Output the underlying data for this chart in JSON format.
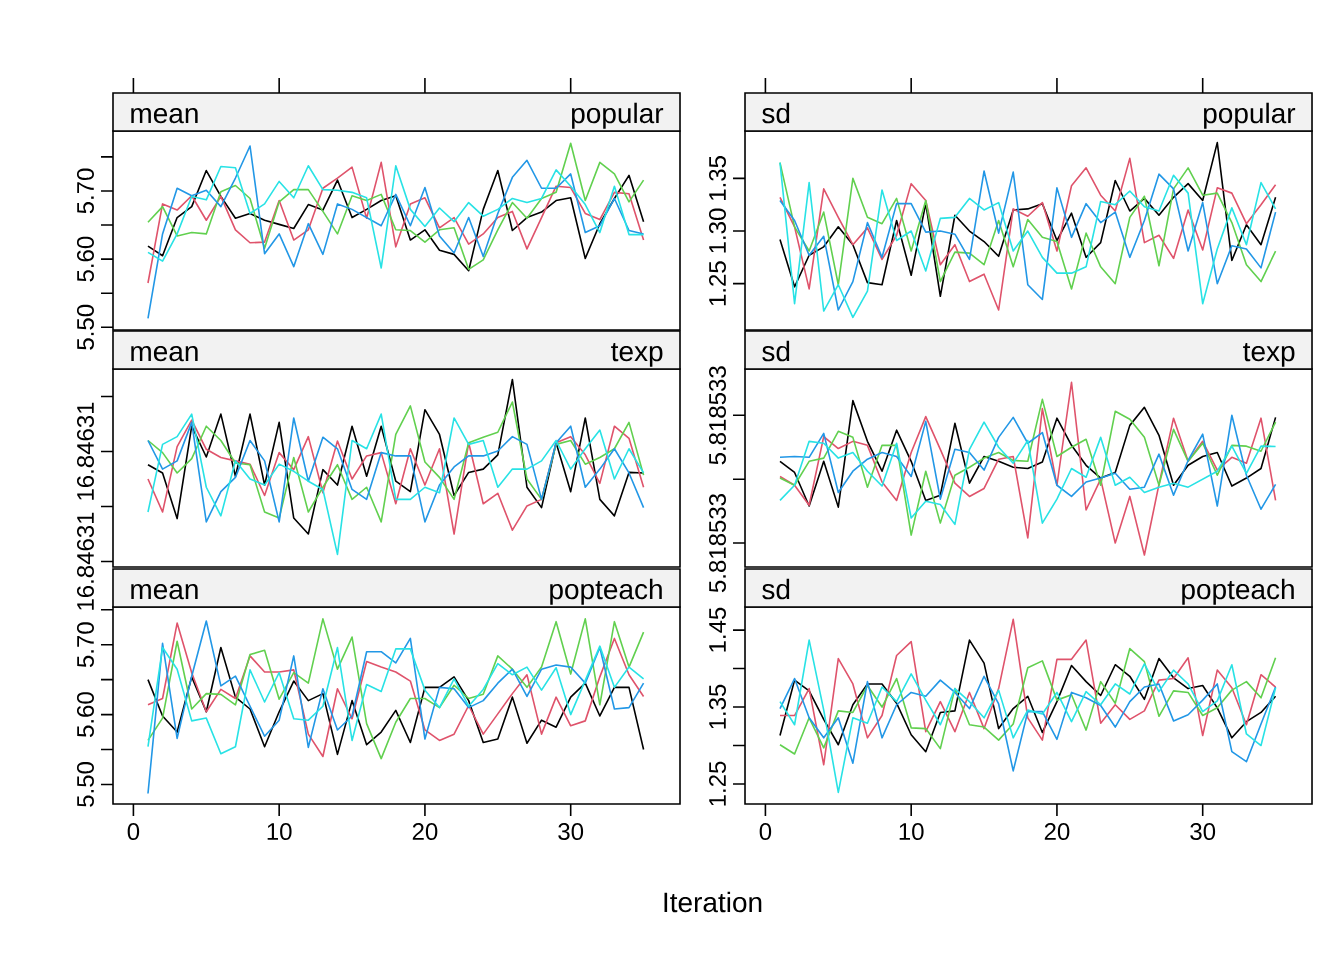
{
  "chart_data": [
    {
      "type": "line",
      "title": "mean",
      "subtitle": "popular",
      "x": [
        1,
        2,
        3,
        4,
        5,
        6,
        7,
        8,
        9,
        10,
        11,
        12,
        13,
        14,
        15,
        16,
        17,
        18,
        19,
        20,
        21,
        22,
        23,
        24,
        25,
        26,
        27,
        28,
        29,
        30,
        31,
        32,
        33,
        34,
        35
      ],
      "xlim": [
        -1.4,
        37.5
      ],
      "xticks": [
        0,
        10,
        20,
        30
      ],
      "ylim": [
        5.496,
        5.788
      ],
      "yticks": [
        {
          "value": 5.5,
          "label": "5.50"
        },
        {
          "value": 5.55,
          "label": null
        },
        {
          "value": 5.6,
          "label": "5.60"
        },
        {
          "value": 5.65,
          "label": null
        },
        {
          "value": 5.7,
          "label": "5.70"
        },
        {
          "value": 5.75,
          "label": null
        }
      ],
      "tick_labels": "y",
      "series": [
        {
          "color": "#000000",
          "values": [
            5.619,
            5.605,
            5.661,
            5.677,
            5.73,
            5.692,
            5.66,
            5.667,
            5.657,
            5.651,
            5.645,
            5.68,
            5.672,
            5.716,
            5.661,
            5.673,
            5.686,
            5.693,
            5.628,
            5.643,
            5.613,
            5.607,
            5.583,
            5.673,
            5.73,
            5.642,
            5.661,
            5.669,
            5.686,
            5.69,
            5.601,
            5.652,
            5.689,
            5.723,
            5.655
          ]
        },
        {
          "color": "#DF536B",
          "values": [
            5.565,
            5.681,
            5.672,
            5.693,
            5.657,
            5.692,
            5.643,
            5.624,
            5.625,
            5.686,
            5.628,
            5.643,
            5.704,
            5.719,
            5.735,
            5.66,
            5.742,
            5.618,
            5.681,
            5.69,
            5.646,
            5.661,
            5.622,
            5.637,
            5.661,
            5.67,
            5.615,
            5.661,
            5.707,
            5.705,
            5.667,
            5.658,
            5.698,
            5.696,
            5.628
          ]
        },
        {
          "color": "#61D04F",
          "values": [
            5.654,
            5.677,
            5.634,
            5.639,
            5.637,
            5.699,
            5.708,
            5.689,
            5.616,
            5.684,
            5.702,
            5.702,
            5.67,
            5.637,
            5.693,
            5.686,
            5.695,
            5.643,
            5.642,
            5.625,
            5.643,
            5.646,
            5.585,
            5.599,
            5.643,
            5.683,
            5.66,
            5.689,
            5.698,
            5.77,
            5.686,
            5.742,
            5.725,
            5.684,
            5.716
          ]
        },
        {
          "color": "#2297E6",
          "values": [
            5.513,
            5.637,
            5.704,
            5.693,
            5.701,
            5.677,
            5.719,
            5.766,
            5.608,
            5.637,
            5.589,
            5.652,
            5.607,
            5.681,
            5.673,
            5.661,
            5.649,
            5.695,
            5.649,
            5.705,
            5.634,
            5.609,
            5.661,
            5.604,
            5.667,
            5.72,
            5.745,
            5.704,
            5.704,
            5.725,
            5.639,
            5.649,
            5.689,
            5.642,
            5.637
          ]
        },
        {
          "color": "#28E2E5",
          "values": [
            5.61,
            5.597,
            5.637,
            5.692,
            5.687,
            5.736,
            5.734,
            5.667,
            5.681,
            5.714,
            5.69,
            5.737,
            5.702,
            5.701,
            5.698,
            5.69,
            5.587,
            5.737,
            5.673,
            5.648,
            5.675,
            5.655,
            5.683,
            5.663,
            5.673,
            5.689,
            5.683,
            5.689,
            5.731,
            5.707,
            5.68,
            5.639,
            5.707,
            5.636,
            5.636
          ]
        }
      ]
    },
    {
      "type": "line",
      "title": "sd",
      "subtitle": "popular",
      "x": [
        1,
        2,
        3,
        4,
        5,
        6,
        7,
        8,
        9,
        10,
        11,
        12,
        13,
        14,
        15,
        16,
        17,
        18,
        19,
        20,
        21,
        22,
        23,
        24,
        25,
        26,
        27,
        28,
        29,
        30,
        31,
        32,
        33,
        34,
        35
      ],
      "xlim": [
        -1.4,
        37.5
      ],
      "xticks": [
        0,
        10,
        20,
        30
      ],
      "ylim": [
        1.206,
        1.395
      ],
      "yticks": [
        {
          "value": 1.25,
          "label": "1.25"
        },
        {
          "value": 1.3,
          "label": "1.30"
        },
        {
          "value": 1.35,
          "label": "1.35"
        }
      ],
      "tick_labels": "y",
      "series": [
        {
          "color": "#000000",
          "values": [
            1.292,
            1.247,
            1.277,
            1.285,
            1.304,
            1.287,
            1.251,
            1.249,
            1.31,
            1.258,
            1.326,
            1.238,
            1.315,
            1.3,
            1.29,
            1.276,
            1.32,
            1.321,
            1.326,
            1.291,
            1.317,
            1.275,
            1.289,
            1.348,
            1.319,
            1.331,
            1.315,
            1.332,
            1.345,
            1.329,
            1.384,
            1.272,
            1.306,
            1.287,
            1.332
          ]
        },
        {
          "color": "#DF536B",
          "values": [
            1.332,
            1.304,
            1.245,
            1.34,
            1.313,
            1.287,
            1.303,
            1.273,
            1.296,
            1.345,
            1.329,
            1.268,
            1.287,
            1.252,
            1.259,
            1.225,
            1.321,
            1.314,
            1.327,
            1.281,
            1.343,
            1.36,
            1.334,
            1.319,
            1.369,
            1.289,
            1.296,
            1.274,
            1.32,
            1.282,
            1.341,
            1.336,
            1.307,
            1.325,
            1.344
          ]
        },
        {
          "color": "#61D04F",
          "values": [
            1.365,
            1.304,
            1.281,
            1.318,
            1.249,
            1.35,
            1.313,
            1.307,
            1.331,
            1.281,
            1.329,
            1.252,
            1.28,
            1.279,
            1.268,
            1.31,
            1.266,
            1.311,
            1.294,
            1.29,
            1.245,
            1.298,
            1.266,
            1.25,
            1.313,
            1.333,
            1.267,
            1.34,
            1.36,
            1.334,
            1.336,
            1.308,
            1.268,
            1.252,
            1.281
          ]
        },
        {
          "color": "#2297E6",
          "values": [
            1.329,
            1.31,
            1.277,
            1.295,
            1.225,
            1.252,
            1.308,
            1.275,
            1.326,
            1.326,
            1.299,
            1.3,
            1.297,
            1.273,
            1.357,
            1.298,
            1.356,
            1.249,
            1.235,
            1.341,
            1.294,
            1.326,
            1.308,
            1.318,
            1.275,
            1.31,
            1.354,
            1.34,
            1.281,
            1.327,
            1.25,
            1.286,
            1.283,
            1.265,
            1.318
          ]
        },
        {
          "color": "#28E2E5",
          "values": [
            1.365,
            1.231,
            1.346,
            1.224,
            1.249,
            1.218,
            1.243,
            1.339,
            1.291,
            1.3,
            1.262,
            1.312,
            1.313,
            1.331,
            1.32,
            1.327,
            1.281,
            1.3,
            1.275,
            1.26,
            1.26,
            1.266,
            1.328,
            1.325,
            1.338,
            1.323,
            1.319,
            1.353,
            1.336,
            1.231,
            1.283,
            1.322,
            1.287,
            1.346,
            1.321
          ]
        }
      ]
    },
    {
      "type": "line",
      "title": "mean",
      "subtitle": "texp",
      "x": [
        1,
        2,
        3,
        4,
        5,
        6,
        7,
        8,
        9,
        10,
        11,
        12,
        13,
        14,
        15,
        16,
        17,
        18,
        19,
        20,
        21,
        22,
        23,
        24,
        25,
        26,
        27,
        28,
        29,
        30,
        31,
        32,
        33,
        34,
        35
      ],
      "xlim": [
        -1.4,
        37.5
      ],
      "xticks": [
        0,
        10,
        20,
        30
      ],
      "ylim": [
        16.8463079,
        16.8463115
      ],
      "yticks": [
        {
          "value": 16.846308,
          "label": "16.84631"
        },
        {
          "value": 16.846309,
          "label": null
        },
        {
          "value": 16.84631,
          "label": "16.84631"
        },
        {
          "value": 16.846311,
          "label": null
        }
      ],
      "tick_labels": "y",
      "series": [
        {
          "color": "#000000",
          "values": [
            16.84630976,
            16.84630961,
            16.84630878,
            16.84631046,
            16.8463099,
            16.84631068,
            16.84630955,
            16.84631068,
            16.84630939,
            16.84631053,
            16.84630879,
            16.8463085,
            16.84630967,
            16.84630939,
            16.84631046,
            16.84630955,
            16.84631046,
            16.84630946,
            16.84630927,
            16.84631076,
            16.84631031,
            16.8463092,
            16.84630962,
            16.84630968,
            16.84630994,
            16.84631131,
            16.84630935,
            16.84630898,
            16.84631016,
            16.84630927,
            16.84631061,
            16.84630913,
            16.84630883,
            16.84630962,
            16.84630961
          ]
        },
        {
          "color": "#DF536B",
          "values": [
            16.8463095,
            16.8463089,
            16.84631009,
            16.84631057,
            16.84631004,
            16.84630989,
            16.84630983,
            16.84630977,
            16.8463092,
            16.84630998,
            16.84630967,
            16.84631027,
            16.84630925,
            16.84631019,
            16.8463095,
            16.84630992,
            16.84630998,
            16.84630905,
            16.84631005,
            16.84630939,
            16.84631005,
            16.8463085,
            16.84631016,
            16.84630905,
            16.84630924,
            16.84630857,
            16.84630901,
            16.84630913,
            16.84631016,
            16.84631027,
            16.84630994,
            16.84630942,
            16.84631046,
            16.84631024,
            16.84630935
          ]
        },
        {
          "color": "#61D04F",
          "values": [
            16.8463102,
            16.84630998,
            16.84630961,
            16.84630987,
            16.84631046,
            16.8463102,
            16.84630979,
            16.84630976,
            16.8463089,
            16.84630879,
            16.84630989,
            16.8463089,
            16.84630935,
            16.84630976,
            16.84630913,
            16.84630935,
            16.84630872,
            16.84631031,
            16.84631083,
            16.84630981,
            16.84630953,
            16.84630913,
            16.84631016,
            16.84631026,
            16.84631035,
            16.8463109,
            16.8463095,
            16.84630913,
            16.84631013,
            16.8463102,
            16.84630977,
            16.84630989,
            16.84631005,
            16.84631053,
            16.84630957
          ]
        },
        {
          "color": "#2297E6",
          "values": [
            16.8463102,
            16.84630968,
            16.84630983,
            16.84631053,
            16.84630872,
            16.84630927,
            16.84630953,
            16.8463102,
            16.84630983,
            16.84630872,
            16.84631061,
            16.84630946,
            16.84631026,
            16.84631005,
            16.84630931,
            16.84630913,
            16.84630998,
            16.84630992,
            16.84630992,
            16.84630872,
            16.84630939,
            16.84630972,
            16.84630992,
            16.84630992,
            16.84631001,
            16.84631027,
            16.84631013,
            16.84630913,
            16.84631016,
            16.84631046,
            16.84630935,
            16.84630968,
            16.84631005,
            16.84630961,
            16.84630898
          ]
        },
        {
          "color": "#28E2E5",
          "values": [
            16.8463089,
            16.84631013,
            16.84631027,
            16.84631068,
            16.84630935,
            16.84630883,
            16.84630983,
            16.8463095,
            16.84630939,
            16.84630977,
            16.84630964,
            16.84630946,
            16.84630931,
            16.84630813,
            16.8463102,
            16.84631005,
            16.84631068,
            16.84630913,
            16.84630913,
            16.84630935,
            16.84630925,
            16.84631061,
            16.84631013,
            16.8463102,
            16.84630935,
            16.84630968,
            16.84630968,
            16.84630983,
            16.8463102,
            16.84630968,
            16.84631005,
            16.84631039,
            16.8463095,
            16.84631005,
            16.84630961
          ]
        }
      ]
    },
    {
      "type": "line",
      "title": "sd",
      "subtitle": "texp",
      "x": [
        1,
        2,
        3,
        4,
        5,
        6,
        7,
        8,
        9,
        10,
        11,
        12,
        13,
        14,
        15,
        16,
        17,
        18,
        19,
        20,
        21,
        22,
        23,
        24,
        25,
        26,
        27,
        28,
        29,
        30,
        31,
        32,
        33,
        34,
        35
      ],
      "xlim": [
        -1.4,
        37.5
      ],
      "xticks": [
        0,
        10,
        20,
        30
      ],
      "ylim": [
        5.81853245,
        5.81853369
      ],
      "yticks": [
        {
          "value": 5.8185326,
          "label": "5.818533"
        },
        {
          "value": 5.818533,
          "label": null
        },
        {
          "value": 5.8185334,
          "label": "5.818533"
        }
      ],
      "tick_labels": "y",
      "series": [
        {
          "color": "#000000",
          "values": [
            5.818533112,
            5.818533042,
            5.818532832,
            5.818533112,
            5.818532825,
            5.818533492,
            5.818533237,
            5.81853305,
            5.818533307,
            5.818533112,
            5.818532867,
            5.8185329,
            5.81853335,
            5.818532975,
            5.818533142,
            5.818533112,
            5.818533075,
            5.818533067,
            5.818533107,
            5.818533382,
            5.818533212,
            5.818533087,
            5.818533007,
            5.818533042,
            5.818533337,
            5.81853345,
            5.818533275,
            5.818532962,
            5.818533087,
            5.818533142,
            5.818533167,
            5.818532957,
            5.818533007,
            5.818533067,
            5.818533387
          ]
        },
        {
          "color": "#DF536B",
          "values": [
            5.818533017,
            5.818532962,
            5.818532837,
            5.818533267,
            5.818533192,
            5.818533237,
            5.818533212,
            5.818532982,
            5.818532867,
            5.818533167,
            5.818533392,
            5.818533187,
            5.818532975,
            5.818532892,
            5.818532942,
            5.818533125,
            5.818533142,
            5.818532632,
            5.818533442,
            5.818532962,
            5.818533607,
            5.818532807,
            5.818533,
            5.8185326,
            5.818532892,
            5.818532525,
            5.818532967,
            5.818533382,
            5.818533112,
            5.818533237,
            5.818533057,
            5.818533137,
            5.8185331,
            5.818533382,
            5.818532867
          ]
        },
        {
          "color": "#61D04F",
          "values": [
            5.818533007,
            5.818532962,
            5.818533112,
            5.818533132,
            5.8185333,
            5.818533262,
            5.81853295,
            5.818533212,
            5.818533212,
            5.81853265,
            5.81853305,
            5.818532725,
            5.818533025,
            5.818533075,
            5.818533132,
            5.818533167,
            5.818533117,
            5.818533112,
            5.8185335,
            5.818533142,
            5.8185332,
            5.81853325,
            5.818532962,
            5.818533425,
            5.818533375,
            5.818533262,
            5.818532962,
            5.818533312,
            5.818533112,
            5.818533225,
            5.818533025,
            5.818533212,
            5.818533207,
            5.818533175,
            5.818533357
          ]
        },
        {
          "color": "#2297E6",
          "values": [
            5.818533137,
            5.818533142,
            5.818533137,
            5.818533287,
            5.818532917,
            5.81853305,
            5.818533125,
            5.818533167,
            5.818533142,
            5.818533017,
            5.818533362,
            5.818532875,
            5.818533187,
            5.818533167,
            5.818533057,
            5.818533262,
            5.818533387,
            5.818533225,
            5.818533292,
            5.818532962,
            5.818532892,
            5.818532982,
            5.818533007,
            5.818533037,
            5.818532937,
            5.81853295,
            5.818533157,
            5.8185329,
            5.818533117,
            5.818533282,
            5.818532832,
            5.8185334,
            5.818533025,
            5.818532812,
            5.818532967
          ]
        },
        {
          "color": "#28E2E5",
          "values": [
            5.818532867,
            5.818532962,
            5.818533237,
            5.818533225,
            5.818533132,
            5.818533167,
            5.81853305,
            5.818532957,
            5.818533225,
            5.818532757,
            5.818532862,
            5.818532842,
            5.818532717,
            5.818533187,
            5.818533357,
            5.8185332,
            5.8185331,
            5.818533242,
            5.818532725,
            5.818532875,
            5.818533067,
            5.818533012,
            5.818533262,
            5.818532962,
            5.818533012,
            5.818532917,
            5.81853295,
            5.818532975,
            5.81853295,
            5.818533,
            5.81853305,
            5.818533207,
            5.818533037,
            5.818533207,
            5.818533205
          ]
        }
      ]
    },
    {
      "type": "line",
      "title": "mean",
      "subtitle": "popteach",
      "x": [
        1,
        2,
        3,
        4,
        5,
        6,
        7,
        8,
        9,
        10,
        11,
        12,
        13,
        14,
        15,
        16,
        17,
        18,
        19,
        20,
        21,
        22,
        23,
        24,
        25,
        26,
        27,
        28,
        29,
        30,
        31,
        32,
        33,
        34,
        35
      ],
      "xlim": [
        -1.4,
        37.5
      ],
      "xticks": [
        0,
        10,
        20,
        30
      ],
      "ylim": [
        5.472,
        5.754
      ],
      "yticks": [
        {
          "value": 5.5,
          "label": "5.50"
        },
        {
          "value": 5.55,
          "label": null
        },
        {
          "value": 5.6,
          "label": "5.60"
        },
        {
          "value": 5.65,
          "label": null
        },
        {
          "value": 5.7,
          "label": "5.70"
        },
        {
          "value": 5.75,
          "label": null
        }
      ],
      "series": [
        {
          "color": "#000000",
          "values": [
            5.65,
            5.598,
            5.575,
            5.654,
            5.604,
            5.696,
            5.625,
            5.608,
            5.554,
            5.604,
            5.648,
            5.62,
            5.63,
            5.543,
            5.62,
            5.557,
            5.575,
            5.606,
            5.56,
            5.639,
            5.639,
            5.654,
            5.62,
            5.56,
            5.565,
            5.625,
            5.559,
            5.592,
            5.582,
            5.625,
            5.645,
            5.598,
            5.639,
            5.639,
            5.55
          ]
        },
        {
          "color": "#DF536B",
          "values": [
            5.614,
            5.623,
            5.731,
            5.66,
            5.604,
            5.636,
            5.623,
            5.684,
            5.661,
            5.661,
            5.664,
            5.572,
            5.54,
            5.637,
            5.594,
            5.676,
            5.668,
            5.661,
            5.648,
            5.578,
            5.563,
            5.572,
            5.613,
            5.572,
            5.601,
            5.63,
            5.657,
            5.572,
            5.625,
            5.584,
            5.591,
            5.654,
            5.709,
            5.657,
            5.626
          ]
        },
        {
          "color": "#61D04F",
          "values": [
            5.563,
            5.595,
            5.705,
            5.608,
            5.63,
            5.629,
            5.614,
            5.686,
            5.692,
            5.622,
            5.66,
            5.645,
            5.737,
            5.665,
            5.711,
            5.587,
            5.537,
            5.589,
            5.623,
            5.623,
            5.61,
            5.642,
            5.623,
            5.629,
            5.684,
            5.665,
            5.639,
            5.668,
            5.733,
            5.658,
            5.737,
            5.614,
            5.733,
            5.668,
            5.718
          ]
        },
        {
          "color": "#2297E6",
          "values": [
            5.487,
            5.702,
            5.566,
            5.655,
            5.734,
            5.641,
            5.655,
            5.612,
            5.569,
            5.592,
            5.684,
            5.553,
            5.637,
            5.578,
            5.598,
            5.69,
            5.69,
            5.674,
            5.709,
            5.565,
            5.639,
            5.637,
            5.61,
            5.62,
            5.645,
            5.665,
            5.626,
            5.665,
            5.671,
            5.668,
            5.645,
            5.696,
            5.608,
            5.61,
            5.645
          ]
        },
        {
          "color": "#28E2E5",
          "values": [
            5.554,
            5.696,
            5.665,
            5.591,
            5.595,
            5.544,
            5.554,
            5.664,
            5.618,
            5.66,
            5.594,
            5.592,
            5.612,
            5.696,
            5.563,
            5.643,
            5.633,
            5.694,
            5.694,
            5.635,
            5.61,
            5.651,
            5.612,
            5.636,
            5.673,
            5.657,
            5.668,
            5.635,
            5.667,
            5.6,
            5.649,
            5.698,
            5.639,
            5.668,
            5.651
          ]
        }
      ]
    },
    {
      "type": "line",
      "title": "sd",
      "subtitle": "popteach",
      "xlabel": "Iteration",
      "x": [
        1,
        2,
        3,
        4,
        5,
        6,
        7,
        8,
        9,
        10,
        11,
        12,
        13,
        14,
        15,
        16,
        17,
        18,
        19,
        20,
        21,
        22,
        23,
        24,
        25,
        26,
        27,
        28,
        29,
        30,
        31,
        32,
        33,
        34,
        35
      ],
      "xlim": [
        -1.4,
        37.5
      ],
      "xticks": [
        0,
        10,
        20,
        30
      ],
      "ylim": [
        1.224,
        1.48
      ],
      "yticks": [
        {
          "value": 1.25,
          "label": "1.25"
        },
        {
          "value": 1.3,
          "label": null
        },
        {
          "value": 1.35,
          "label": "1.35"
        },
        {
          "value": 1.4,
          "label": null
        },
        {
          "value": 1.45,
          "label": "1.45"
        }
      ],
      "series": [
        {
          "color": "#000000",
          "values": [
            1.313,
            1.385,
            1.371,
            1.334,
            1.301,
            1.353,
            1.38,
            1.38,
            1.355,
            1.314,
            1.292,
            1.343,
            1.345,
            1.437,
            1.407,
            1.322,
            1.348,
            1.364,
            1.317,
            1.357,
            1.404,
            1.383,
            1.365,
            1.405,
            1.39,
            1.36,
            1.413,
            1.388,
            1.374,
            1.378,
            1.349,
            1.31,
            1.331,
            1.343,
            1.364
          ]
        },
        {
          "color": "#DF536B",
          "values": [
            1.339,
            1.339,
            1.374,
            1.275,
            1.413,
            1.38,
            1.31,
            1.339,
            1.417,
            1.435,
            1.318,
            1.357,
            1.318,
            1.369,
            1.322,
            1.374,
            1.464,
            1.336,
            1.307,
            1.412,
            1.412,
            1.437,
            1.329,
            1.353,
            1.334,
            1.345,
            1.385,
            1.387,
            1.414,
            1.313,
            1.398,
            1.375,
            1.327,
            1.392,
            1.376
          ]
        },
        {
          "color": "#61D04F",
          "values": [
            1.301,
            1.289,
            1.336,
            1.297,
            1.345,
            1.343,
            1.378,
            1.35,
            1.387,
            1.323,
            1.322,
            1.296,
            1.374,
            1.327,
            1.324,
            1.307,
            1.328,
            1.401,
            1.41,
            1.359,
            1.366,
            1.32,
            1.383,
            1.355,
            1.426,
            1.409,
            1.338,
            1.371,
            1.369,
            1.339,
            1.349,
            1.372,
            1.383,
            1.362,
            1.414
          ]
        },
        {
          "color": "#2297E6",
          "values": [
            1.348,
            1.387,
            1.336,
            1.31,
            1.336,
            1.277,
            1.383,
            1.31,
            1.353,
            1.369,
            1.364,
            1.385,
            1.369,
            1.348,
            1.39,
            1.354,
            1.267,
            1.344,
            1.344,
            1.308,
            1.369,
            1.362,
            1.352,
            1.324,
            1.357,
            1.376,
            1.38,
            1.332,
            1.34,
            1.359,
            1.38,
            1.292,
            1.279,
            1.328,
            1.376
          ]
        },
        {
          "color": "#28E2E5",
          "values": [
            1.357,
            1.327,
            1.437,
            1.346,
            1.239,
            1.336,
            1.329,
            1.376,
            1.357,
            1.393,
            1.359,
            1.327,
            1.374,
            1.357,
            1.336,
            1.372,
            1.31,
            1.346,
            1.341,
            1.369,
            1.331,
            1.37,
            1.353,
            1.38,
            1.367,
            1.406,
            1.37,
            1.398,
            1.38,
            1.344,
            1.358,
            1.405,
            1.315,
            1.3,
            1.375
          ]
        }
      ]
    }
  ]
}
